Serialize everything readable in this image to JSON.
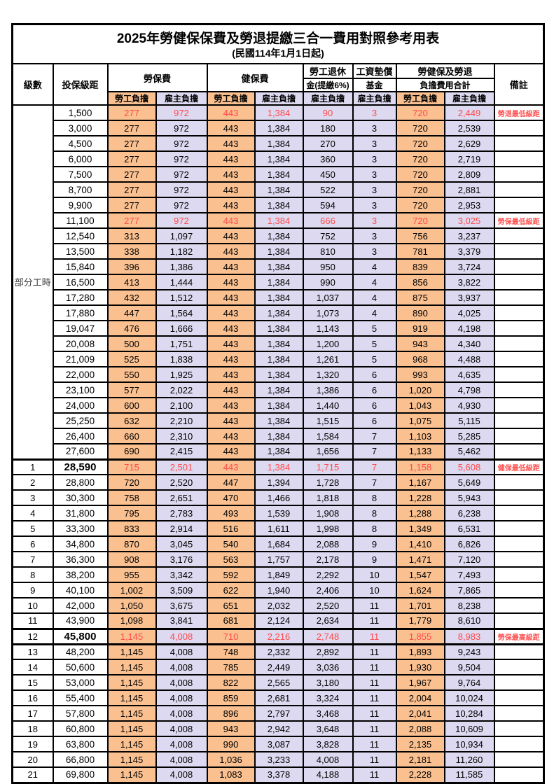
{
  "title": "2025年勞健保保費及勞退提繳三合一費用對照參考用表",
  "subtitle": "(民國114年1月1日起)",
  "table": {
    "columns": {
      "level": "級數",
      "salary": "投保級距",
      "labor": "勞保費",
      "health": "健保費",
      "pension_line1": "勞工退休",
      "pension_line2": "金(提繳6%)",
      "fund_line1": "工資墊償",
      "fund_line2": "基金",
      "total_line1": "勞健保及勞退",
      "total_line2": "負擔費用合計",
      "remark": "備註",
      "employee": "勞工負擔",
      "employer": "雇主負擔"
    },
    "colors": {
      "employee_bg": "#FAC090",
      "employer_bg": "#DDD9F0",
      "highlight_text": "#FF4A4A",
      "remark_text": "#FF5252",
      "border": "#000000"
    },
    "part_time_label": "部分工時",
    "part_time_row_count": 23,
    "rows": [
      {
        "level": "",
        "salary": "1,500",
        "values": [
          "277",
          "972",
          "443",
          "1,384",
          "90",
          "3",
          "720",
          "2,449"
        ],
        "remark": "勞退最低級距",
        "red": true,
        "bold": false,
        "thick_top": false
      },
      {
        "level": "",
        "salary": "3,000",
        "values": [
          "277",
          "972",
          "443",
          "1,384",
          "180",
          "3",
          "720",
          "2,539"
        ],
        "remark": "",
        "red": false,
        "bold": false,
        "thick_top": false
      },
      {
        "level": "",
        "salary": "4,500",
        "values": [
          "277",
          "972",
          "443",
          "1,384",
          "270",
          "3",
          "720",
          "2,629"
        ],
        "remark": "",
        "red": false,
        "bold": false,
        "thick_top": false
      },
      {
        "level": "",
        "salary": "6,000",
        "values": [
          "277",
          "972",
          "443",
          "1,384",
          "360",
          "3",
          "720",
          "2,719"
        ],
        "remark": "",
        "red": false,
        "bold": false,
        "thick_top": false
      },
      {
        "level": "",
        "salary": "7,500",
        "values": [
          "277",
          "972",
          "443",
          "1,384",
          "450",
          "3",
          "720",
          "2,809"
        ],
        "remark": "",
        "red": false,
        "bold": false,
        "thick_top": false
      },
      {
        "level": "",
        "salary": "8,700",
        "values": [
          "277",
          "972",
          "443",
          "1,384",
          "522",
          "3",
          "720",
          "2,881"
        ],
        "remark": "",
        "red": false,
        "bold": false,
        "thick_top": false
      },
      {
        "level": "",
        "salary": "9,900",
        "values": [
          "277",
          "972",
          "443",
          "1,384",
          "594",
          "3",
          "720",
          "2,953"
        ],
        "remark": "",
        "red": false,
        "bold": false,
        "thick_top": false
      },
      {
        "level": "",
        "salary": "11,100",
        "values": [
          "277",
          "972",
          "443",
          "1,384",
          "666",
          "3",
          "720",
          "3,025"
        ],
        "remark": "勞保最低級距",
        "red": true,
        "bold": false,
        "thick_top": false
      },
      {
        "level": "",
        "salary": "12,540",
        "values": [
          "313",
          "1,097",
          "443",
          "1,384",
          "752",
          "3",
          "756",
          "3,237"
        ],
        "remark": "",
        "red": false,
        "bold": false,
        "thick_top": false
      },
      {
        "level": "",
        "salary": "13,500",
        "values": [
          "338",
          "1,182",
          "443",
          "1,384",
          "810",
          "3",
          "781",
          "3,379"
        ],
        "remark": "",
        "red": false,
        "bold": false,
        "thick_top": false
      },
      {
        "level": "",
        "salary": "15,840",
        "values": [
          "396",
          "1,386",
          "443",
          "1,384",
          "950",
          "4",
          "839",
          "3,724"
        ],
        "remark": "",
        "red": false,
        "bold": false,
        "thick_top": false
      },
      {
        "level": "",
        "salary": "16,500",
        "values": [
          "413",
          "1,444",
          "443",
          "1,384",
          "990",
          "4",
          "856",
          "3,822"
        ],
        "remark": "",
        "red": false,
        "bold": false,
        "thick_top": false
      },
      {
        "level": "",
        "salary": "17,280",
        "values": [
          "432",
          "1,512",
          "443",
          "1,384",
          "1,037",
          "4",
          "875",
          "3,937"
        ],
        "remark": "",
        "red": false,
        "bold": false,
        "thick_top": false
      },
      {
        "level": "",
        "salary": "17,880",
        "values": [
          "447",
          "1,564",
          "443",
          "1,384",
          "1,073",
          "4",
          "890",
          "4,025"
        ],
        "remark": "",
        "red": false,
        "bold": false,
        "thick_top": false
      },
      {
        "level": "",
        "salary": "19,047",
        "values": [
          "476",
          "1,666",
          "443",
          "1,384",
          "1,143",
          "5",
          "919",
          "4,198"
        ],
        "remark": "",
        "red": false,
        "bold": false,
        "thick_top": false
      },
      {
        "level": "",
        "salary": "20,008",
        "values": [
          "500",
          "1,751",
          "443",
          "1,384",
          "1,200",
          "5",
          "943",
          "4,340"
        ],
        "remark": "",
        "red": false,
        "bold": false,
        "thick_top": false
      },
      {
        "level": "",
        "salary": "21,009",
        "values": [
          "525",
          "1,838",
          "443",
          "1,384",
          "1,261",
          "5",
          "968",
          "4,488"
        ],
        "remark": "",
        "red": false,
        "bold": false,
        "thick_top": false
      },
      {
        "level": "",
        "salary": "22,000",
        "values": [
          "550",
          "1,925",
          "443",
          "1,384",
          "1,320",
          "6",
          "993",
          "4,635"
        ],
        "remark": "",
        "red": false,
        "bold": false,
        "thick_top": false
      },
      {
        "level": "",
        "salary": "23,100",
        "values": [
          "577",
          "2,022",
          "443",
          "1,384",
          "1,386",
          "6",
          "1,020",
          "4,798"
        ],
        "remark": "",
        "red": false,
        "bold": false,
        "thick_top": false
      },
      {
        "level": "",
        "salary": "24,000",
        "values": [
          "600",
          "2,100",
          "443",
          "1,384",
          "1,440",
          "6",
          "1,043",
          "4,930"
        ],
        "remark": "",
        "red": false,
        "bold": false,
        "thick_top": false
      },
      {
        "level": "",
        "salary": "25,250",
        "values": [
          "632",
          "2,210",
          "443",
          "1,384",
          "1,515",
          "6",
          "1,075",
          "5,115"
        ],
        "remark": "",
        "red": false,
        "bold": false,
        "thick_top": false
      },
      {
        "level": "",
        "salary": "26,400",
        "values": [
          "660",
          "2,310",
          "443",
          "1,384",
          "1,584",
          "7",
          "1,103",
          "5,285"
        ],
        "remark": "",
        "red": false,
        "bold": false,
        "thick_top": false
      },
      {
        "level": "",
        "salary": "27,600",
        "values": [
          "690",
          "2,415",
          "443",
          "1,384",
          "1,656",
          "7",
          "1,133",
          "5,462"
        ],
        "remark": "",
        "red": false,
        "bold": false,
        "thick_top": false
      },
      {
        "level": "1",
        "salary": "28,590",
        "values": [
          "715",
          "2,501",
          "443",
          "1,384",
          "1,715",
          "7",
          "1,158",
          "5,608"
        ],
        "remark": "健保最低級距",
        "red": true,
        "bold": true,
        "thick_top": true
      },
      {
        "level": "2",
        "salary": "28,800",
        "values": [
          "720",
          "2,520",
          "447",
          "1,394",
          "1,728",
          "7",
          "1,167",
          "5,649"
        ],
        "remark": "",
        "red": false,
        "bold": false,
        "thick_top": false
      },
      {
        "level": "3",
        "salary": "30,300",
        "values": [
          "758",
          "2,651",
          "470",
          "1,466",
          "1,818",
          "8",
          "1,228",
          "5,943"
        ],
        "remark": "",
        "red": false,
        "bold": false,
        "thick_top": false
      },
      {
        "level": "4",
        "salary": "31,800",
        "values": [
          "795",
          "2,783",
          "493",
          "1,539",
          "1,908",
          "8",
          "1,288",
          "6,238"
        ],
        "remark": "",
        "red": false,
        "bold": false,
        "thick_top": false
      },
      {
        "level": "5",
        "salary": "33,300",
        "values": [
          "833",
          "2,914",
          "516",
          "1,611",
          "1,998",
          "8",
          "1,349",
          "6,531"
        ],
        "remark": "",
        "red": false,
        "bold": false,
        "thick_top": false
      },
      {
        "level": "6",
        "salary": "34,800",
        "values": [
          "870",
          "3,045",
          "540",
          "1,684",
          "2,088",
          "9",
          "1,410",
          "6,826"
        ],
        "remark": "",
        "red": false,
        "bold": false,
        "thick_top": false
      },
      {
        "level": "7",
        "salary": "36,300",
        "values": [
          "908",
          "3,176",
          "563",
          "1,757",
          "2,178",
          "9",
          "1,471",
          "7,120"
        ],
        "remark": "",
        "red": false,
        "bold": false,
        "thick_top": false
      },
      {
        "level": "8",
        "salary": "38,200",
        "values": [
          "955",
          "3,342",
          "592",
          "1,849",
          "2,292",
          "10",
          "1,547",
          "7,493"
        ],
        "remark": "",
        "red": false,
        "bold": false,
        "thick_top": false
      },
      {
        "level": "9",
        "salary": "40,100",
        "values": [
          "1,002",
          "3,509",
          "622",
          "1,940",
          "2,406",
          "10",
          "1,624",
          "7,865"
        ],
        "remark": "",
        "red": false,
        "bold": false,
        "thick_top": false
      },
      {
        "level": "10",
        "salary": "42,000",
        "values": [
          "1,050",
          "3,675",
          "651",
          "2,032",
          "2,520",
          "11",
          "1,701",
          "8,238"
        ],
        "remark": "",
        "red": false,
        "bold": false,
        "thick_top": false
      },
      {
        "level": "11",
        "salary": "43,900",
        "values": [
          "1,098",
          "3,841",
          "681",
          "2,124",
          "2,634",
          "11",
          "1,779",
          "8,610"
        ],
        "remark": "",
        "red": false,
        "bold": false,
        "thick_top": false
      },
      {
        "level": "12",
        "salary": "45,800",
        "values": [
          "1,145",
          "4,008",
          "710",
          "2,216",
          "2,748",
          "11",
          "1,855",
          "8,983"
        ],
        "remark": "勞保最高級距",
        "red": true,
        "bold": true,
        "thick_top": true
      },
      {
        "level": "13",
        "salary": "48,200",
        "values": [
          "1,145",
          "4,008",
          "748",
          "2,332",
          "2,892",
          "11",
          "1,893",
          "9,243"
        ],
        "remark": "",
        "red": false,
        "bold": false,
        "thick_top": true
      },
      {
        "level": "14",
        "salary": "50,600",
        "values": [
          "1,145",
          "4,008",
          "785",
          "2,449",
          "3,036",
          "11",
          "1,930",
          "9,504"
        ],
        "remark": "",
        "red": false,
        "bold": false,
        "thick_top": false
      },
      {
        "level": "15",
        "salary": "53,000",
        "values": [
          "1,145",
          "4,008",
          "822",
          "2,565",
          "3,180",
          "11",
          "1,967",
          "9,764"
        ],
        "remark": "",
        "red": false,
        "bold": false,
        "thick_top": false
      },
      {
        "level": "16",
        "salary": "55,400",
        "values": [
          "1,145",
          "4,008",
          "859",
          "2,681",
          "3,324",
          "11",
          "2,004",
          "10,024"
        ],
        "remark": "",
        "red": false,
        "bold": false,
        "thick_top": false
      },
      {
        "level": "17",
        "salary": "57,800",
        "values": [
          "1,145",
          "4,008",
          "896",
          "2,797",
          "3,468",
          "11",
          "2,041",
          "10,284"
        ],
        "remark": "",
        "red": false,
        "bold": false,
        "thick_top": false
      },
      {
        "level": "18",
        "salary": "60,800",
        "values": [
          "1,145",
          "4,008",
          "943",
          "2,942",
          "3,648",
          "11",
          "2,088",
          "10,609"
        ],
        "remark": "",
        "red": false,
        "bold": false,
        "thick_top": false
      },
      {
        "level": "19",
        "salary": "63,800",
        "values": [
          "1,145",
          "4,008",
          "990",
          "3,087",
          "3,828",
          "11",
          "2,135",
          "10,934"
        ],
        "remark": "",
        "red": false,
        "bold": false,
        "thick_top": false
      },
      {
        "level": "20",
        "salary": "66,800",
        "values": [
          "1,145",
          "4,008",
          "1,036",
          "3,233",
          "4,008",
          "11",
          "2,181",
          "11,260"
        ],
        "remark": "",
        "red": false,
        "bold": false,
        "thick_top": false
      },
      {
        "level": "21",
        "salary": "69,800",
        "values": [
          "1,145",
          "4,008",
          "1,083",
          "3,378",
          "4,188",
          "11",
          "2,228",
          "11,585"
        ],
        "remark": "",
        "red": false,
        "bold": false,
        "thick_top": false
      }
    ]
  }
}
